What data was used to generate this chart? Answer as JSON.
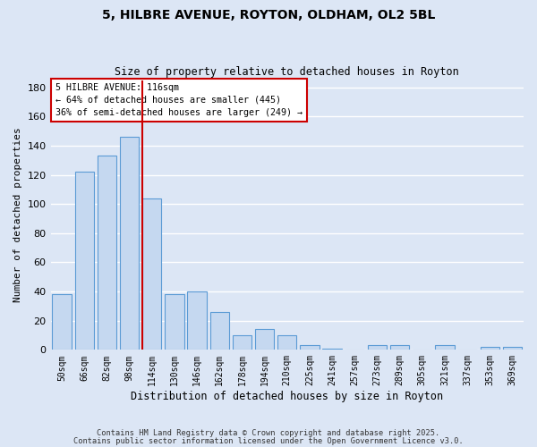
{
  "title": "5, HILBRE AVENUE, ROYTON, OLDHAM, OL2 5BL",
  "subtitle": "Size of property relative to detached houses in Royton",
  "xlabel": "Distribution of detached houses by size in Royton",
  "ylabel": "Number of detached properties",
  "bar_labels": [
    "50sqm",
    "66sqm",
    "82sqm",
    "98sqm",
    "114sqm",
    "130sqm",
    "146sqm",
    "162sqm",
    "178sqm",
    "194sqm",
    "210sqm",
    "225sqm",
    "241sqm",
    "257sqm",
    "273sqm",
    "289sqm",
    "305sqm",
    "321sqm",
    "337sqm",
    "353sqm",
    "369sqm"
  ],
  "bar_values": [
    38,
    122,
    133,
    146,
    104,
    38,
    40,
    26,
    10,
    14,
    10,
    3,
    1,
    0,
    3,
    3,
    0,
    3,
    0,
    2,
    2
  ],
  "bar_color": "#c5d8f0",
  "bar_edgecolor": "#5b9bd5",
  "highlight_index": 4,
  "vline_color": "#cc0000",
  "ylim": [
    0,
    185
  ],
  "yticks": [
    0,
    20,
    40,
    60,
    80,
    100,
    120,
    140,
    160,
    180
  ],
  "annotation_line1": "5 HILBRE AVENUE: 116sqm",
  "annotation_line2": "← 64% of detached houses are smaller (445)",
  "annotation_line3": "36% of semi-detached houses are larger (249) →",
  "annotation_box_edgecolor": "#cc0000",
  "footnote1": "Contains HM Land Registry data © Crown copyright and database right 2025.",
  "footnote2": "Contains public sector information licensed under the Open Government Licence v3.0.",
  "bg_color": "#dce6f5",
  "plot_bg_color": "#dce6f5",
  "grid_color": "#ffffff",
  "title_fontsize": 10,
  "subtitle_fontsize": 8.5
}
